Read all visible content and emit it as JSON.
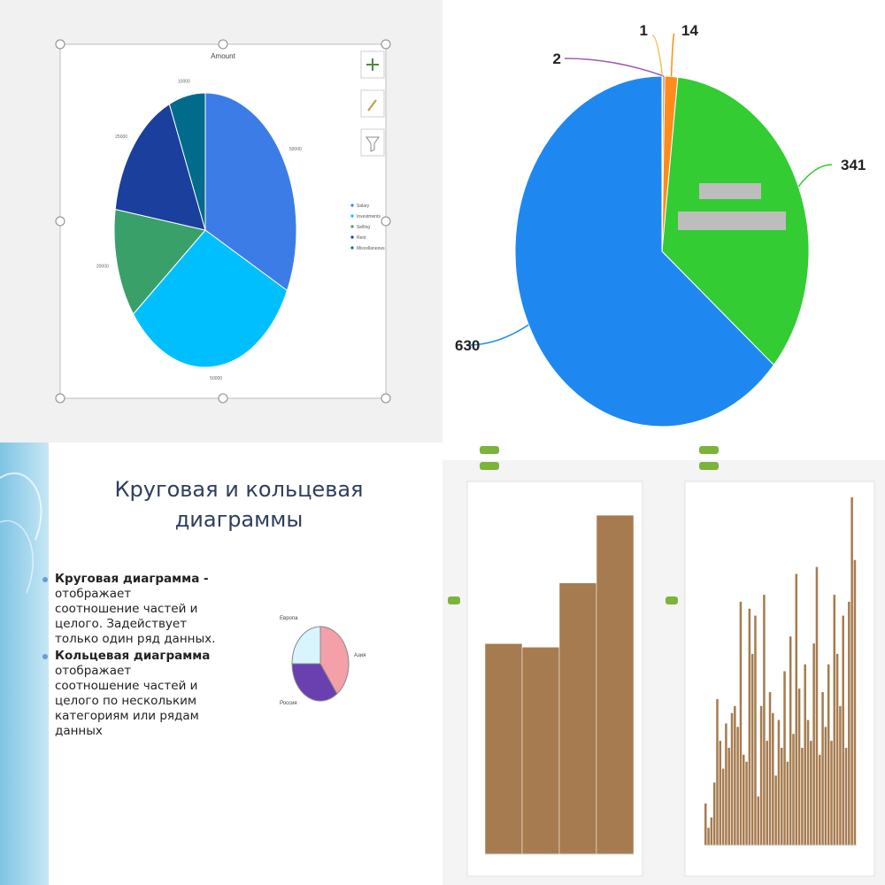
{
  "chart_data": [
    {
      "type": "pie",
      "title": "Amount",
      "slices": [
        {
          "label": "50000",
          "value": 50000,
          "color": "#3c7ce6"
        },
        {
          "label": "50000",
          "value": 50000,
          "color": "#00bfff"
        },
        {
          "label": "20000",
          "value": 20000,
          "color": "#3aa06a"
        },
        {
          "label": "25000",
          "value": 25000,
          "color": "#1a3f9c"
        },
        {
          "label": "10000",
          "value": 10000,
          "color": "#006b8a"
        }
      ],
      "legend": [
        "Salary",
        "Investments",
        "Selling",
        "Rent",
        "Miscellaneous"
      ],
      "legend_position": "right",
      "toolbar_icons": [
        "plus-icon",
        "brush-icon",
        "filter-icon"
      ]
    },
    {
      "type": "pie",
      "slices": [
        {
          "label": "630",
          "value": 630,
          "color": "#1e88f0"
        },
        {
          "label": "341",
          "value": 341,
          "color": "#33cc33"
        },
        {
          "label": "14",
          "value": 14,
          "color": "#ff8c1a"
        },
        {
          "label": "2",
          "value": 2,
          "color": "#9b59b6"
        },
        {
          "label": "1",
          "value": 1,
          "color": "#f0c050"
        }
      ]
    },
    {
      "type": "pie",
      "slide_title": "Круговая и кольцевая диаграммы",
      "bullets": [
        {
          "head": "Круговая диаграмма -",
          "text": [
            "отображает",
            "соотношение частей и",
            "целого. Задействует",
            "только один ряд данных."
          ]
        },
        {
          "head": "Кольцевая диаграмма",
          "text": [
            "отображает",
            "соотношение частей и",
            "целого по нескольким",
            "категориям или рядам",
            "данных"
          ]
        }
      ],
      "slices": [
        {
          "label": "Азия",
          "value": 40,
          "color": "#f4a0a8"
        },
        {
          "label": "Россия",
          "value": 35,
          "color": "#6a3fb0"
        },
        {
          "label": "Европа",
          "value": 25,
          "color": "#d8f4fc"
        }
      ]
    },
    {
      "type": "bar",
      "values": [
        59,
        58,
        76,
        95
      ],
      "ylim": [
        0,
        100
      ],
      "bar_color": "#a67b4f"
    },
    {
      "type": "bar",
      "values": [
        12,
        5,
        8,
        18,
        42,
        30,
        22,
        35,
        28,
        38,
        40,
        34,
        70,
        26,
        24,
        68,
        55,
        66,
        14,
        40,
        72,
        30,
        44,
        38,
        20,
        36,
        28,
        50,
        24,
        60,
        32,
        78,
        45,
        28,
        52,
        36,
        30,
        58,
        80,
        26,
        44,
        34,
        52,
        30,
        72,
        55,
        40,
        66,
        28,
        70,
        100,
        82
      ],
      "ylim": [
        0,
        100
      ],
      "bar_color": "#a67b4f"
    }
  ]
}
